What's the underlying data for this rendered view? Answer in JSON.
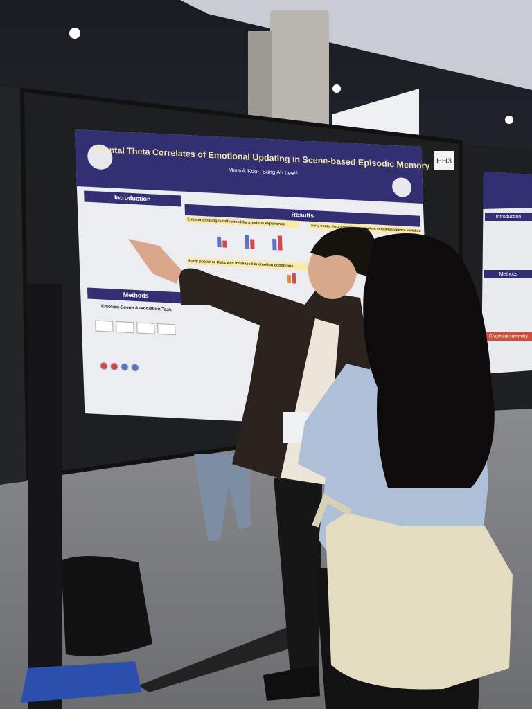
{
  "poster": {
    "title": "Frontal Theta Correlates of Emotional Updating in Scene-based Episodic Memory",
    "authors": "Minsok Koo¹, Sang Ah Lee¹²",
    "sections": {
      "introduction": "Introduction",
      "results": "Results",
      "methods": "Methods",
      "task": "Emotion-Scene Association Task"
    },
    "findings": [
      "Emotional rating is influenced by previous experience",
      "Early posterior theta was increased in emotion conditions",
      "Early frontal theta power increased when emotional valence switched"
    ]
  },
  "board_label": "HH3",
  "side_poster": {
    "sections": [
      "Introduction",
      "Methods",
      "Graphical summary"
    ]
  }
}
